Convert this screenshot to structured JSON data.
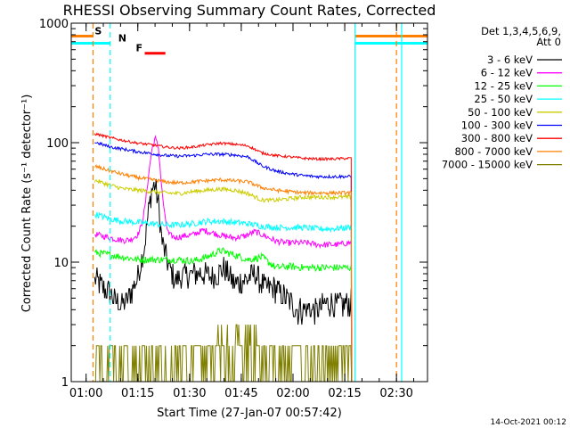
{
  "chart_data": {
    "type": "line",
    "title": "RHESSI Observing Summary Count Rates, Corrected",
    "xlabel": "Start Time (27-Jan-07 00:57:42)",
    "ylabel": "Corrected Count Rate (s⁻¹ detector⁻¹)",
    "x_ticks": [
      "01:00",
      "01:15",
      "01:30",
      "01:45",
      "02:00",
      "02:15",
      "02:30"
    ],
    "x_tick_minutes": [
      62,
      77,
      92,
      107,
      122,
      137,
      152
    ],
    "xlim_minutes": [
      57.7,
      161
    ],
    "y_scale": "log",
    "ylim": [
      1,
      1000
    ],
    "y_ticks": [
      1,
      10,
      100,
      1000
    ],
    "y_tick_labels": [
      "1",
      "10",
      "100",
      "1000"
    ],
    "legend_header": [
      "Det 1,3,4,5,6,9,",
      "Att 0"
    ],
    "legend_position": "right",
    "timestamp": "14-Oct-2021 00:12",
    "data_window_minutes": [
      64.5,
      139
    ],
    "flags": [
      {
        "label": "S",
        "color": "#ff7f00",
        "bar_minutes": [
          [
            57.7,
            64
          ],
          [
            140,
            161
          ]
        ],
        "bar_value": 780
      },
      {
        "label": "N",
        "color": "#00ffff",
        "bar_minutes": [
          [
            57.7,
            69
          ],
          [
            140,
            161
          ]
        ],
        "bar_value": 680
      },
      {
        "label": "F",
        "color": "#ff0000",
        "bar_minutes": [
          [
            79,
            85
          ]
        ],
        "bar_value": 560
      }
    ],
    "markers": [
      {
        "minute": 64,
        "color": "#ff7f00",
        "style": "dashed"
      },
      {
        "minute": 69,
        "color": "#00ffff",
        "style": "dashed"
      },
      {
        "minute": 140,
        "color": "#00ffff",
        "style": "solid"
      },
      {
        "minute": 152,
        "color": "#ff7f00",
        "style": "dashed"
      },
      {
        "minute": 153.5,
        "color": "#00ffff",
        "style": "solid"
      }
    ],
    "series": [
      {
        "name": "3 - 6 keV",
        "color": "#000000",
        "x": [
          65,
          67,
          69,
          71,
          73,
          75,
          77,
          79,
          80,
          81,
          82,
          83,
          84,
          86,
          88,
          90,
          93,
          96,
          99,
          102,
          105,
          108,
          111,
          114,
          117,
          120,
          123,
          126,
          129,
          132,
          135,
          138
        ],
        "y": [
          7,
          6.2,
          5.5,
          4.5,
          4.5,
          5.5,
          7.5,
          14,
          25,
          40,
          45,
          30,
          15,
          9,
          7,
          7.5,
          8,
          8,
          7.5,
          9,
          6.5,
          7,
          8,
          6,
          6,
          5,
          4,
          4,
          4,
          4.5,
          4.5,
          4.5
        ]
      },
      {
        "name": "6 - 12 keV",
        "color": "#ff00ff",
        "x": [
          65,
          67,
          69,
          71,
          73,
          75,
          77,
          78,
          79,
          80,
          81,
          82,
          83,
          84,
          85,
          86,
          88,
          90,
          93,
          96,
          99,
          102,
          105,
          108,
          111,
          114,
          117,
          120,
          123,
          126,
          129,
          132,
          135,
          138
        ],
        "y": [
          17,
          16.5,
          16,
          15.5,
          15.2,
          15.5,
          17,
          20,
          28,
          50,
          85,
          110,
          90,
          40,
          22,
          17,
          16,
          16.5,
          17,
          18.5,
          17.5,
          16.5,
          16,
          16.5,
          18,
          16.5,
          15,
          14.5,
          14.5,
          14.5,
          14,
          14,
          14,
          14.5
        ]
      },
      {
        "name": "12 - 25 keV",
        "color": "#00ff00",
        "x": [
          65,
          69,
          73,
          77,
          81,
          85,
          89,
          93,
          97,
          101,
          105,
          109,
          113,
          117,
          121,
          125,
          129,
          133,
          138
        ],
        "y": [
          12,
          11.5,
          11,
          10.5,
          10.5,
          10.5,
          10.5,
          10.2,
          11,
          12.5,
          11.5,
          10.5,
          11,
          9,
          9.2,
          9,
          9,
          9,
          9
        ]
      },
      {
        "name": "25 - 50 keV",
        "color": "#00ffff",
        "x": [
          65,
          69,
          73,
          77,
          81,
          85,
          89,
          93,
          97,
          101,
          105,
          109,
          113,
          117,
          121,
          125,
          129,
          133,
          138
        ],
        "y": [
          25,
          23,
          22,
          21.5,
          21,
          20.5,
          20.5,
          21,
          22,
          22,
          21.5,
          21,
          20,
          19.5,
          19.5,
          19.5,
          19,
          19,
          19.5
        ]
      },
      {
        "name": "50 - 100 keV",
        "color": "#cccc00",
        "x": [
          65,
          69,
          73,
          77,
          81,
          85,
          89,
          93,
          97,
          101,
          105,
          109,
          113,
          117,
          121,
          125,
          129,
          133,
          138
        ],
        "y": [
          48,
          44,
          41,
          40,
          39,
          38,
          37.5,
          39,
          40,
          41,
          40,
          37.5,
          33,
          33,
          34,
          35,
          35,
          35,
          35
        ]
      },
      {
        "name": "100 - 300 keV",
        "color": "#0000ff",
        "x": [
          65,
          69,
          73,
          77,
          81,
          85,
          89,
          93,
          97,
          101,
          105,
          109,
          113,
          117,
          121,
          125,
          129,
          133,
          138
        ],
        "y": [
          100,
          92,
          88,
          84,
          81,
          78,
          77,
          78,
          80,
          80,
          79,
          76,
          64,
          58,
          55,
          53,
          52,
          52,
          52
        ]
      },
      {
        "name": "300 - 800 keV",
        "color": "#ff0000",
        "x": [
          65,
          69,
          73,
          77,
          81,
          85,
          89,
          93,
          97,
          101,
          105,
          109,
          113,
          117,
          121,
          125,
          129,
          133,
          138
        ],
        "y": [
          118,
          110,
          104,
          99,
          96,
          92,
          90,
          92,
          96,
          99,
          97,
          94,
          82,
          78,
          76,
          74,
          73,
          73,
          74
        ]
      },
      {
        "name": "800 - 7000 keV",
        "color": "#ff7f00",
        "x": [
          65,
          69,
          73,
          77,
          81,
          85,
          89,
          93,
          97,
          101,
          105,
          109,
          113,
          117,
          121,
          125,
          129,
          133,
          138
        ],
        "y": [
          63,
          58,
          54,
          51,
          49,
          47,
          46,
          47,
          48,
          49,
          48,
          47,
          42,
          40,
          39,
          38,
          38,
          38,
          38
        ]
      },
      {
        "name": "7000 - 15000 keV",
        "color": "#7f7f00",
        "x": [
          65,
          138
        ],
        "y": [
          2,
          2
        ]
      }
    ]
  }
}
